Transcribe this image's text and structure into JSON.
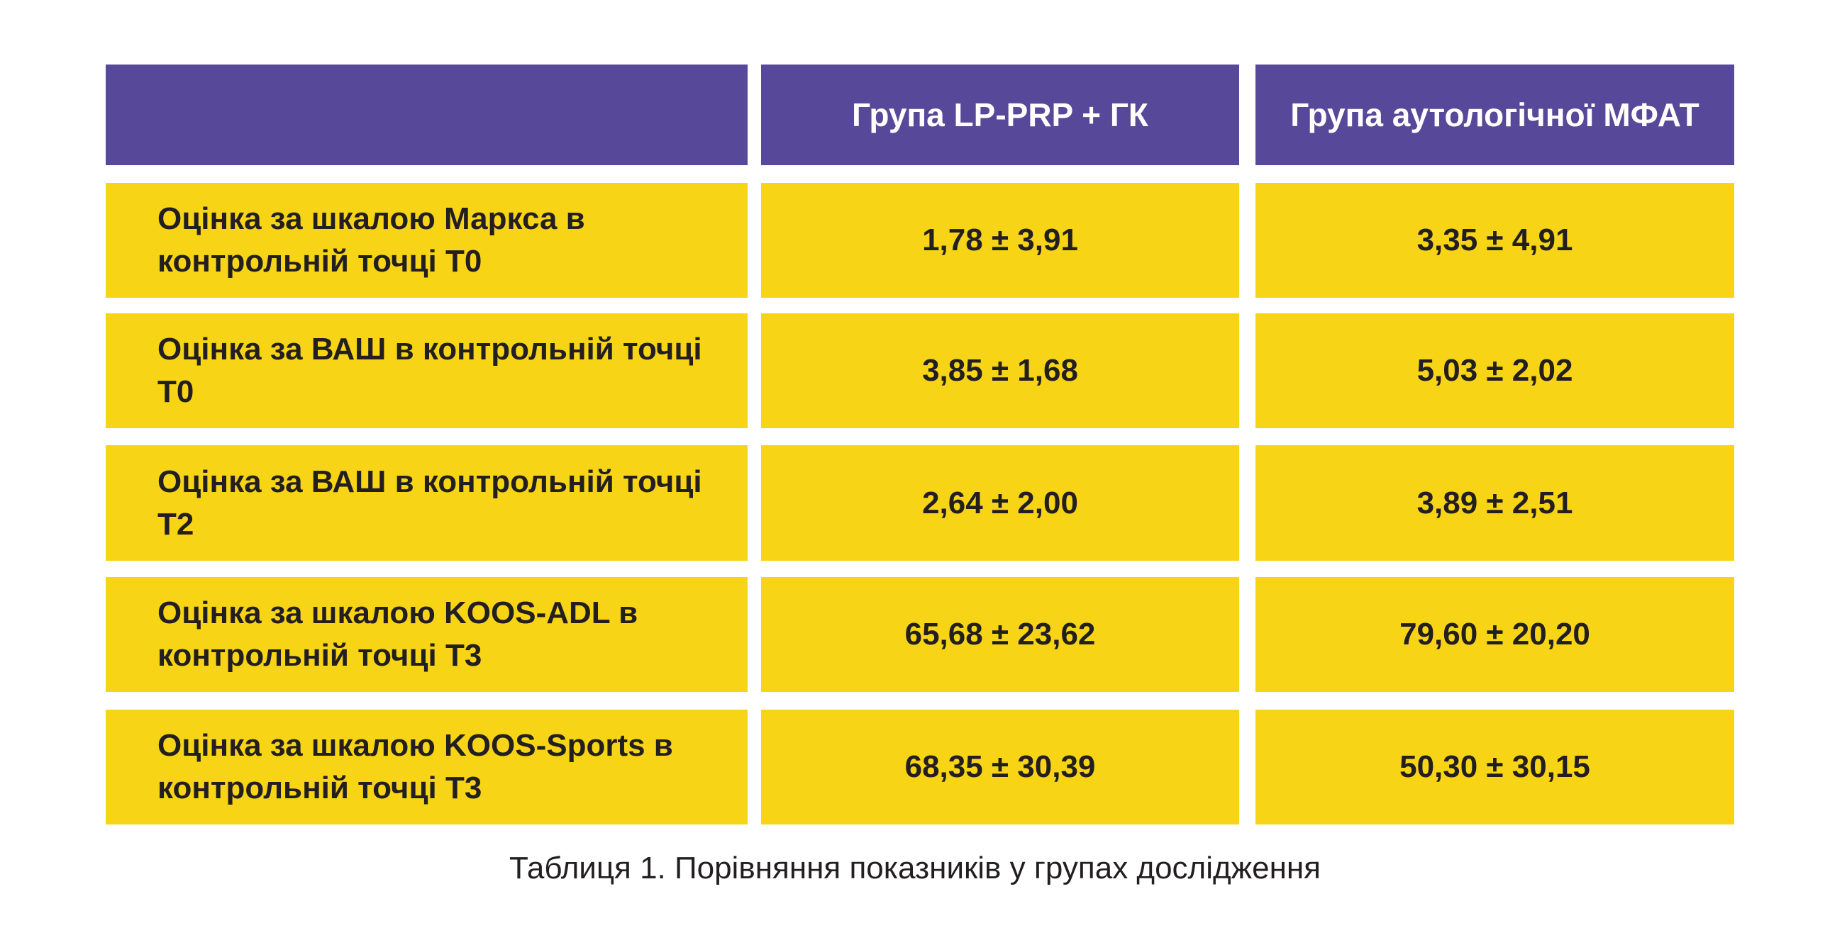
{
  "header": {
    "col1": "",
    "col2": "Група LP-PRP + ГК",
    "col3": "Група аутологічної МФАТ"
  },
  "rows": [
    {
      "label": "Оцінка за шкалою Маркса в контрольній точці Т0",
      "group1": "1,78 ± 3,91",
      "group2": "3,35 ± 4,91"
    },
    {
      "label": "Оцінка за ВАШ в контрольній точці Т0",
      "group1": "3,85 ± 1,68",
      "group2": "5,03 ± 2,02"
    },
    {
      "label": "Оцінка за ВАШ в контрольній точці Т2",
      "group1": "2,64 ± 2,00",
      "group2": "3,89 ± 2,51"
    },
    {
      "label": "Оцінка за шкалою KOOS-ADL в контрольній точці Т3",
      "group1": "65,68 ± 23,62",
      "group2": "79,60 ± 20,20"
    },
    {
      "label": "Оцінка за шкалою KOOS-Sports в контрольній точці Т3",
      "group1": "68,35 ± 30,39",
      "group2": "50,30 ± 30,15"
    }
  ],
  "caption": "Таблиця 1. Порівняння показників у групах дослідження",
  "colors": {
    "header": "#584899",
    "row": "#f7d416"
  }
}
